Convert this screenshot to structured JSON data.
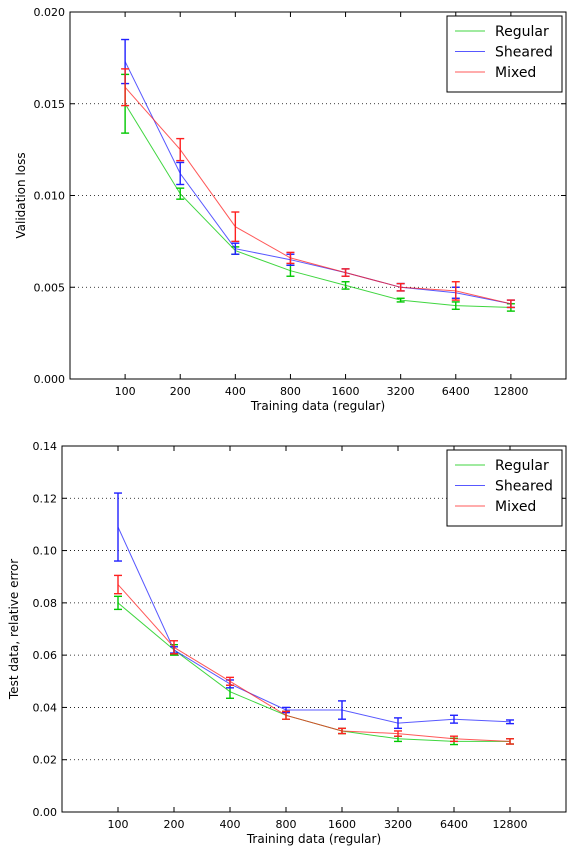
{
  "chart_data": [
    {
      "type": "line",
      "x_scale": "log2",
      "x": [
        100,
        200,
        400,
        800,
        1600,
        3200,
        6400,
        12800
      ],
      "x_tick_labels": [
        "100",
        "200",
        "400",
        "800",
        "1600",
        "3200",
        "6400",
        "12800"
      ],
      "xlim": [
        50,
        25600
      ],
      "ylim": [
        0,
        0.02
      ],
      "y_ticks": [
        0,
        0.005,
        0.01,
        0.015,
        0.02
      ],
      "y_tick_labels": [
        "0.000",
        "0.005",
        "0.010",
        "0.015",
        "0.020"
      ],
      "xlabel": "Training data (regular)",
      "ylabel": "Validation loss",
      "grid": "horizontal dotted",
      "legend": "top-right",
      "series": [
        {
          "name": "Regular",
          "color": "#00c800",
          "values": [
            0.015,
            0.0101,
            0.007,
            0.0059,
            0.0051,
            0.0043,
            0.004,
            0.0039
          ],
          "err": [
            0.0016,
            0.0003,
            0.0002,
            0.0003,
            0.0002,
            0.0001,
            0.0002,
            0.0002
          ]
        },
        {
          "name": "Sheared",
          "color": "#2020ff",
          "values": [
            0.0173,
            0.0112,
            0.0071,
            0.0065,
            0.0058,
            0.005,
            0.0047,
            0.0041
          ],
          "err": [
            0.0012,
            0.0006,
            0.0003,
            0.0003,
            0.0002,
            0.0002,
            0.0003,
            0.0002
          ]
        },
        {
          "name": "Mixed",
          "color": "#ff2020",
          "values": [
            0.0159,
            0.0125,
            0.0083,
            0.0066,
            0.0058,
            0.005,
            0.0048,
            0.0041
          ],
          "err": [
            0.001,
            0.0006,
            0.0008,
            0.0003,
            0.0002,
            0.0002,
            0.0005,
            0.0002
          ]
        }
      ]
    },
    {
      "type": "line",
      "x_scale": "log2",
      "x": [
        100,
        200,
        400,
        800,
        1600,
        3200,
        6400,
        12800
      ],
      "x_tick_labels": [
        "100",
        "200",
        "400",
        "800",
        "1600",
        "3200",
        "6400",
        "12800"
      ],
      "xlim": [
        50,
        25600
      ],
      "ylim": [
        0,
        0.14
      ],
      "y_ticks": [
        0,
        0.02,
        0.04,
        0.06,
        0.08,
        0.1,
        0.12,
        0.14
      ],
      "y_tick_labels": [
        "0.00",
        "0.02",
        "0.04",
        "0.06",
        "0.08",
        "0.10",
        "0.12",
        "0.14"
      ],
      "xlabel": "Training data (regular)",
      "ylabel": "Test data, relative error",
      "grid": "horizontal dotted",
      "legend": "top-right",
      "series": [
        {
          "name": "Regular",
          "color": "#00c800",
          "values": [
            0.08,
            0.062,
            0.046,
            0.037,
            0.031,
            0.028,
            0.027,
            0.027
          ],
          "err": [
            0.0025,
            0.002,
            0.0025,
            0.0015,
            0.001,
            0.001,
            0.0012,
            0.001
          ]
        },
        {
          "name": "Sheared",
          "color": "#2020ff",
          "values": [
            0.109,
            0.062,
            0.049,
            0.039,
            0.039,
            0.034,
            0.0355,
            0.0345
          ],
          "err": [
            0.013,
            0.0012,
            0.0015,
            0.001,
            0.0035,
            0.002,
            0.0015,
            0.0007
          ]
        },
        {
          "name": "Mixed",
          "color": "#ff2020",
          "values": [
            0.087,
            0.063,
            0.05,
            0.037,
            0.031,
            0.03,
            0.028,
            0.027
          ],
          "err": [
            0.0035,
            0.0025,
            0.0015,
            0.0015,
            0.001,
            0.001,
            0.001,
            0.001
          ]
        }
      ]
    }
  ]
}
